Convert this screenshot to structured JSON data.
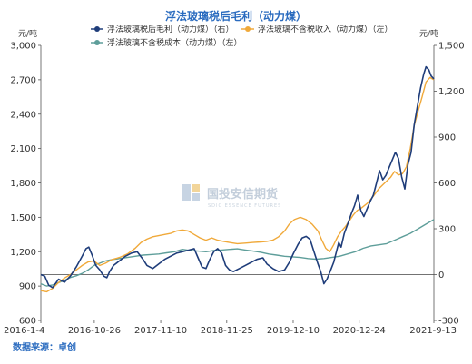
{
  "source_text": "数据来源：卓创",
  "watermark": {
    "name": "国投安信期货",
    "sub": "SDIC ESSENCE FUTURES"
  },
  "chart_data": {
    "type": "line",
    "title": "浮法玻璃税后毛利（动力煤）",
    "left_unit": "元/吨",
    "right_unit": "元/吨",
    "left_ylim": [
      600,
      3000
    ],
    "left_ticks": [
      "600",
      "900",
      "1,200",
      "1,500",
      "1,800",
      "2,100",
      "2,400",
      "2,700",
      "3,000"
    ],
    "right_ylim": [
      -300,
      1500
    ],
    "right_ticks": [
      "-300",
      "0",
      "300",
      "600",
      "900",
      "1,200",
      "1,500"
    ],
    "x_tick_labels": [
      "2016-1-4",
      "2016-10-26",
      "2017-11-10",
      "2018-11-25",
      "2019-12-10",
      "2020-12-24",
      "2021-9-13"
    ],
    "x_tick_positions": [
      0,
      0.136,
      0.305,
      0.473,
      0.642,
      0.81,
      1.0
    ],
    "grid": false,
    "legend_placement": "top",
    "series": [
      {
        "name": "浮法玻璃税后毛利（动力煤）（右）",
        "axis": "right",
        "color": "#1f3d7a",
        "points": [
          [
            0,
            0
          ],
          [
            0.01,
            -10
          ],
          [
            0.02,
            -70
          ],
          [
            0.03,
            -85
          ],
          [
            0.045,
            -30
          ],
          [
            0.06,
            -50
          ],
          [
            0.075,
            -10
          ],
          [
            0.09,
            50
          ],
          [
            0.105,
            120
          ],
          [
            0.115,
            170
          ],
          [
            0.122,
            180
          ],
          [
            0.13,
            130
          ],
          [
            0.14,
            60
          ],
          [
            0.15,
            30
          ],
          [
            0.16,
            -10
          ],
          [
            0.168,
            -20
          ],
          [
            0.175,
            20
          ],
          [
            0.185,
            60
          ],
          [
            0.2,
            90
          ],
          [
            0.215,
            120
          ],
          [
            0.23,
            140
          ],
          [
            0.245,
            150
          ],
          [
            0.26,
            100
          ],
          [
            0.27,
            60
          ],
          [
            0.285,
            40
          ],
          [
            0.3,
            70
          ],
          [
            0.315,
            100
          ],
          [
            0.33,
            120
          ],
          [
            0.345,
            140
          ],
          [
            0.36,
            150
          ],
          [
            0.375,
            160
          ],
          [
            0.39,
            170
          ],
          [
            0.4,
            110
          ],
          [
            0.41,
            50
          ],
          [
            0.42,
            40
          ],
          [
            0.43,
            100
          ],
          [
            0.44,
            150
          ],
          [
            0.45,
            170
          ],
          [
            0.46,
            140
          ],
          [
            0.47,
            60
          ],
          [
            0.48,
            30
          ],
          [
            0.49,
            20
          ],
          [
            0.505,
            40
          ],
          [
            0.52,
            60
          ],
          [
            0.535,
            80
          ],
          [
            0.55,
            100
          ],
          [
            0.565,
            110
          ],
          [
            0.575,
            70
          ],
          [
            0.59,
            40
          ],
          [
            0.605,
            20
          ],
          [
            0.62,
            30
          ],
          [
            0.632,
            80
          ],
          [
            0.643,
            140
          ],
          [
            0.655,
            200
          ],
          [
            0.665,
            240
          ],
          [
            0.675,
            250
          ],
          [
            0.685,
            230
          ],
          [
            0.695,
            150
          ],
          [
            0.705,
            70
          ],
          [
            0.712,
            20
          ],
          [
            0.72,
            -60
          ],
          [
            0.728,
            -30
          ],
          [
            0.736,
            20
          ],
          [
            0.745,
            80
          ],
          [
            0.752,
            150
          ],
          [
            0.758,
            210
          ],
          [
            0.764,
            180
          ],
          [
            0.772,
            270
          ],
          [
            0.782,
            340
          ],
          [
            0.79,
            400
          ],
          [
            0.798,
            450
          ],
          [
            0.806,
            520
          ],
          [
            0.814,
            420
          ],
          [
            0.822,
            380
          ],
          [
            0.83,
            430
          ],
          [
            0.838,
            480
          ],
          [
            0.846,
            520
          ],
          [
            0.854,
            600
          ],
          [
            0.862,
            680
          ],
          [
            0.87,
            620
          ],
          [
            0.878,
            650
          ],
          [
            0.886,
            700
          ],
          [
            0.894,
            750
          ],
          [
            0.902,
            800
          ],
          [
            0.91,
            760
          ],
          [
            0.918,
            640
          ],
          [
            0.926,
            560
          ],
          [
            0.934,
            720
          ],
          [
            0.942,
            800
          ],
          [
            0.95,
            980
          ],
          [
            0.958,
            1100
          ],
          [
            0.966,
            1220
          ],
          [
            0.974,
            1310
          ],
          [
            0.98,
            1360
          ],
          [
            0.987,
            1340
          ],
          [
            0.993,
            1300
          ],
          [
            1.0,
            1280
          ]
        ]
      },
      {
        "name": "浮法玻璃不含税收入（动力煤）（左）",
        "axis": "left",
        "color": "#f0a93a",
        "points": [
          [
            0,
            860
          ],
          [
            0.015,
            850
          ],
          [
            0.03,
            880
          ],
          [
            0.045,
            930
          ],
          [
            0.06,
            970
          ],
          [
            0.075,
            1000
          ],
          [
            0.09,
            1040
          ],
          [
            0.105,
            1080
          ],
          [
            0.12,
            1110
          ],
          [
            0.135,
            1120
          ],
          [
            0.15,
            1080
          ],
          [
            0.165,
            1100
          ],
          [
            0.18,
            1130
          ],
          [
            0.2,
            1150
          ],
          [
            0.22,
            1180
          ],
          [
            0.24,
            1230
          ],
          [
            0.255,
            1280
          ],
          [
            0.27,
            1310
          ],
          [
            0.285,
            1330
          ],
          [
            0.3,
            1340
          ],
          [
            0.315,
            1350
          ],
          [
            0.33,
            1360
          ],
          [
            0.345,
            1380
          ],
          [
            0.36,
            1390
          ],
          [
            0.375,
            1380
          ],
          [
            0.39,
            1350
          ],
          [
            0.405,
            1320
          ],
          [
            0.42,
            1300
          ],
          [
            0.435,
            1320
          ],
          [
            0.45,
            1300
          ],
          [
            0.465,
            1290
          ],
          [
            0.48,
            1280
          ],
          [
            0.5,
            1270
          ],
          [
            0.52,
            1275
          ],
          [
            0.54,
            1280
          ],
          [
            0.56,
            1285
          ],
          [
            0.575,
            1290
          ],
          [
            0.59,
            1300
          ],
          [
            0.605,
            1330
          ],
          [
            0.62,
            1380
          ],
          [
            0.632,
            1440
          ],
          [
            0.645,
            1480
          ],
          [
            0.66,
            1500
          ],
          [
            0.675,
            1480
          ],
          [
            0.69,
            1440
          ],
          [
            0.705,
            1380
          ],
          [
            0.715,
            1300
          ],
          [
            0.725,
            1230
          ],
          [
            0.735,
            1200
          ],
          [
            0.745,
            1260
          ],
          [
            0.755,
            1330
          ],
          [
            0.765,
            1380
          ],
          [
            0.775,
            1420
          ],
          [
            0.785,
            1470
          ],
          [
            0.795,
            1520
          ],
          [
            0.805,
            1560
          ],
          [
            0.815,
            1580
          ],
          [
            0.83,
            1620
          ],
          [
            0.845,
            1680
          ],
          [
            0.86,
            1750
          ],
          [
            0.875,
            1800
          ],
          [
            0.89,
            1850
          ],
          [
            0.9,
            1900
          ],
          [
            0.91,
            1870
          ],
          [
            0.92,
            1880
          ],
          [
            0.93,
            1940
          ],
          [
            0.94,
            2100
          ],
          [
            0.95,
            2300
          ],
          [
            0.96,
            2430
          ],
          [
            0.97,
            2550
          ],
          [
            0.98,
            2680
          ],
          [
            0.99,
            2720
          ],
          [
            1.0,
            2700
          ]
        ]
      },
      {
        "name": "浮法玻璃不含税成本（动力煤）（左）",
        "axis": "left",
        "color": "#5e9e9a",
        "points": [
          [
            0,
            920
          ],
          [
            0.015,
            900
          ],
          [
            0.03,
            910
          ],
          [
            0.045,
            930
          ],
          [
            0.06,
            950
          ],
          [
            0.075,
            975
          ],
          [
            0.09,
            990
          ],
          [
            0.105,
            1010
          ],
          [
            0.12,
            1040
          ],
          [
            0.135,
            1080
          ],
          [
            0.15,
            1100
          ],
          [
            0.165,
            1120
          ],
          [
            0.18,
            1130
          ],
          [
            0.2,
            1140
          ],
          [
            0.22,
            1150
          ],
          [
            0.24,
            1160
          ],
          [
            0.26,
            1170
          ],
          [
            0.28,
            1175
          ],
          [
            0.3,
            1180
          ],
          [
            0.32,
            1190
          ],
          [
            0.34,
            1200
          ],
          [
            0.36,
            1220
          ],
          [
            0.38,
            1210
          ],
          [
            0.4,
            1205
          ],
          [
            0.42,
            1200
          ],
          [
            0.44,
            1210
          ],
          [
            0.46,
            1215
          ],
          [
            0.48,
            1220
          ],
          [
            0.5,
            1225
          ],
          [
            0.52,
            1215
          ],
          [
            0.54,
            1205
          ],
          [
            0.56,
            1195
          ],
          [
            0.58,
            1180
          ],
          [
            0.6,
            1170
          ],
          [
            0.62,
            1160
          ],
          [
            0.64,
            1155
          ],
          [
            0.66,
            1150
          ],
          [
            0.68,
            1140
          ],
          [
            0.7,
            1135
          ],
          [
            0.72,
            1140
          ],
          [
            0.74,
            1150
          ],
          [
            0.76,
            1160
          ],
          [
            0.78,
            1180
          ],
          [
            0.8,
            1200
          ],
          [
            0.82,
            1230
          ],
          [
            0.84,
            1250
          ],
          [
            0.86,
            1260
          ],
          [
            0.88,
            1270
          ],
          [
            0.9,
            1300
          ],
          [
            0.92,
            1330
          ],
          [
            0.94,
            1360
          ],
          [
            0.96,
            1400
          ],
          [
            0.98,
            1440
          ],
          [
            1.0,
            1480
          ]
        ]
      }
    ]
  }
}
